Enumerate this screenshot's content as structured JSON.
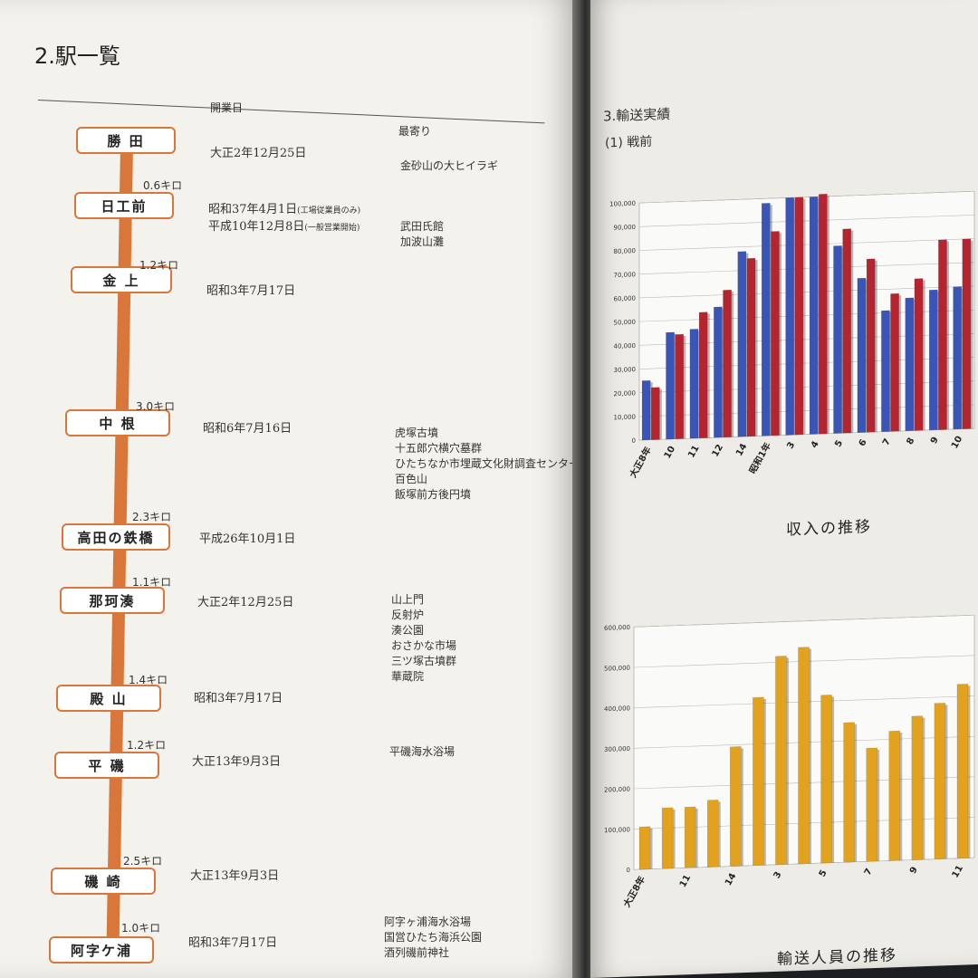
{
  "left_page": {
    "section_title": "2.駅一覧",
    "header_open_date": "開業日",
    "header_nearby": "最寄り",
    "stations": [
      {
        "name": "勝 田",
        "date": "大正2年12月25日",
        "date2": "",
        "date2_note": "",
        "date_note": "",
        "distance": "",
        "notes": [
          "金砂山の大ヒイラギ"
        ]
      },
      {
        "name": "日工前",
        "date": "昭和37年4月1日",
        "date_note": "(工場従業員のみ)",
        "date2": "平成10年12月8日",
        "date2_note": "(一般営業開始)",
        "distance": "0.6キロ",
        "notes": [
          "武田氏館",
          "加波山灘"
        ]
      },
      {
        "name": "金 上",
        "date": "昭和3年7月17日",
        "date2": "",
        "date2_note": "",
        "date_note": "",
        "distance": "1.2キロ",
        "notes": []
      },
      {
        "name": "中 根",
        "date": "昭和6年7月16日",
        "date2": "",
        "date2_note": "",
        "date_note": "",
        "distance": "3.0キロ",
        "notes": [
          "虎塚古墳",
          "十五郎穴横穴墓群",
          "ひたちなか市埋蔵文化財調査センター",
          "百色山",
          "飯塚前方後円墳"
        ]
      },
      {
        "name": "高田の鉄橋",
        "date": "平成26年10月1日",
        "date2": "",
        "date2_note": "",
        "date_note": "",
        "distance": "2.3キロ",
        "notes": []
      },
      {
        "name": "那珂湊",
        "date": "大正2年12月25日",
        "date2": "",
        "date2_note": "",
        "date_note": "",
        "distance": "1.1キロ",
        "notes": [
          "山上門",
          "反射炉",
          "湊公園",
          "おさかな市場",
          "三ツ塚古墳群",
          "華蔵院"
        ]
      },
      {
        "name": "殿 山",
        "date": "昭和3年7月17日",
        "date2": "",
        "date2_note": "",
        "date_note": "",
        "distance": "1.4キロ",
        "notes": []
      },
      {
        "name": "平 磯",
        "date": "大正13年9月3日",
        "date2": "",
        "date2_note": "",
        "date_note": "",
        "distance": "1.2キロ",
        "notes": [
          "平磯海水浴場"
        ]
      },
      {
        "name": "磯 崎",
        "date": "大正13年9月3日",
        "date2": "",
        "date2_note": "",
        "date_note": "",
        "distance": "2.5キロ",
        "notes": []
      },
      {
        "name": "阿字ケ浦",
        "date": "昭和3年7月17日",
        "date2": "",
        "date2_note": "",
        "date_note": "",
        "distance": "1.0キロ",
        "notes": [
          "阿字ヶ浦海水浴場",
          "国営ひたち海浜公園",
          "酒列磯前神社"
        ]
      }
    ]
  },
  "right_page": {
    "section_title": "3.輸送実績",
    "subsection_title": "(1) 戦前",
    "colors": {
      "blue": "#3a55b8",
      "red": "#b42530",
      "gold": "#e3a21e"
    }
  },
  "chart_data": [
    {
      "type": "bar",
      "title": "収入の推移",
      "categories": [
        "大正8年",
        "10",
        "11",
        "12",
        "14",
        "昭和1年",
        "3",
        "4",
        "5",
        "6",
        "7",
        "8",
        "9",
        "10"
      ],
      "series": [
        {
          "values": [
            25000,
            45000,
            46000,
            55000,
            78000,
            98000,
            100000,
            100000,
            79000,
            65000,
            51000,
            56000,
            59000,
            60000
          ]
        },
        {
          "values": [
            22000,
            44000,
            53000,
            62000,
            75000,
            86000,
            100000,
            101000,
            86000,
            73000,
            58000,
            64000,
            80000,
            80000
          ]
        }
      ],
      "yticks": [
        "0",
        "10,000",
        "20,000",
        "30,000",
        "40,000",
        "50,000",
        "60,000",
        "70,000",
        "80,000",
        "90,000",
        "100,000"
      ],
      "ylim": [
        0,
        100000
      ]
    },
    {
      "type": "bar",
      "title": "輸送人員の推移",
      "categories": [
        "大正8年",
        "",
        "11",
        "",
        "14",
        "",
        "3",
        "",
        "5",
        "",
        "7",
        "",
        "9",
        "",
        "11"
      ],
      "series": [
        {
          "values": [
            105000,
            150000,
            150000,
            165000,
            295000,
            415000,
            515000,
            535000,
            415000,
            345000,
            280000,
            320000,
            355000,
            385000,
            430000
          ]
        }
      ],
      "yticks": [
        "0",
        "100,000",
        "200,000",
        "300,000",
        "400,000",
        "500,000",
        "600,000"
      ],
      "ylim": [
        0,
        600000
      ]
    }
  ]
}
